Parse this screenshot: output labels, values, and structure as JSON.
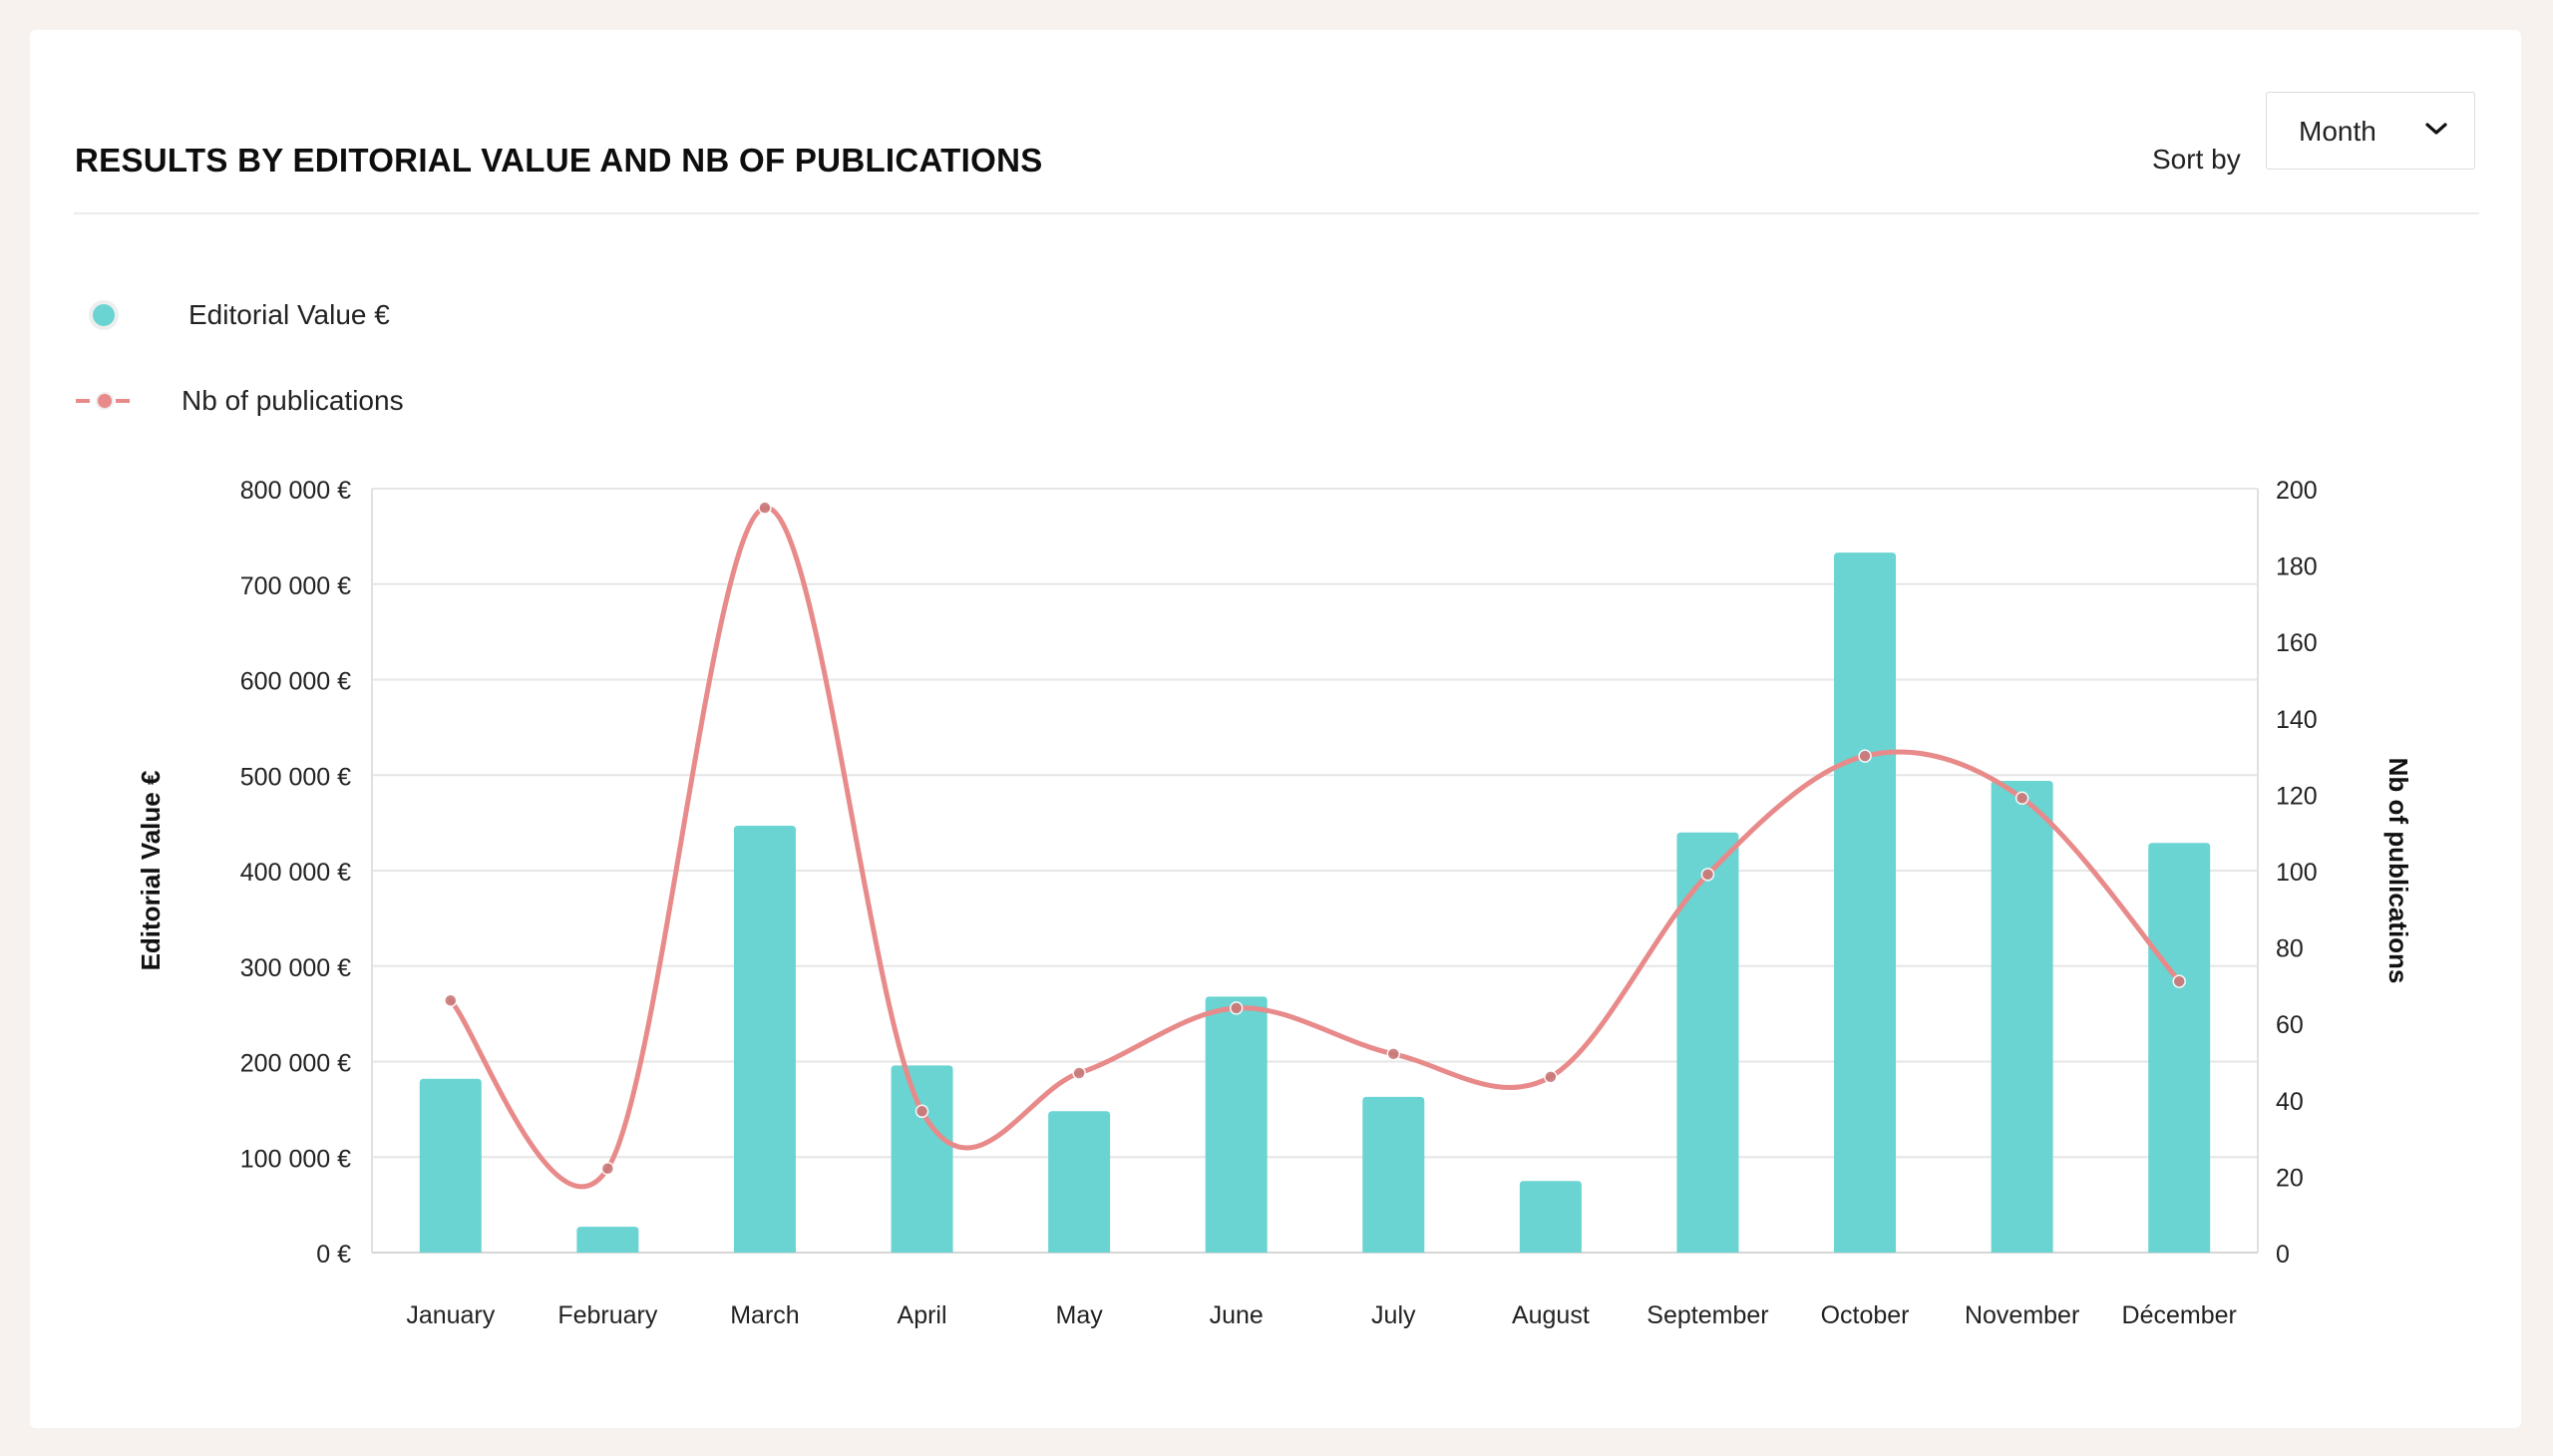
{
  "header": {
    "title": "RESULTS BY EDITORIAL VALUE AND NB OF PUBLICATIONS",
    "sort_label": "Sort by",
    "sort_value": "Month"
  },
  "legend": {
    "bars_label": "Editorial Value €",
    "line_label": "Nb of publications"
  },
  "colors": {
    "bar": "#6ad4d2",
    "line": "#e88a8a",
    "line_point": "#c97a7a"
  },
  "chart_data": {
    "type": "bar",
    "categories": [
      "January",
      "February",
      "March",
      "April",
      "May",
      "June",
      "July",
      "August",
      "September",
      "October",
      "November",
      "Décember"
    ],
    "series": [
      {
        "name": "Editorial Value €",
        "type": "bar",
        "axis": "left",
        "values": [
          182000,
          27000,
          447000,
          196000,
          148000,
          268000,
          163000,
          75000,
          440000,
          733000,
          494000,
          429000
        ]
      },
      {
        "name": "Nb of publications",
        "type": "line",
        "smooth": true,
        "axis": "right",
        "values": [
          66,
          22,
          195,
          37,
          47,
          64,
          52,
          46,
          99,
          130,
          119,
          71
        ]
      }
    ],
    "ylabel": "Editorial Value €",
    "y2label": "Nb of publications",
    "ylim": [
      0,
      800000
    ],
    "y2lim": [
      0,
      200
    ],
    "yticks": [
      "0 €",
      "100 000 €",
      "200 000 €",
      "300 000 €",
      "400 000 €",
      "500 000 €",
      "600 000 €",
      "700 000 €",
      "800 000 €"
    ],
    "y2ticks": [
      "0",
      "20",
      "40",
      "60",
      "80",
      "100",
      "120",
      "140",
      "160",
      "180",
      "200"
    ],
    "grid": true,
    "legend": "top-left"
  }
}
